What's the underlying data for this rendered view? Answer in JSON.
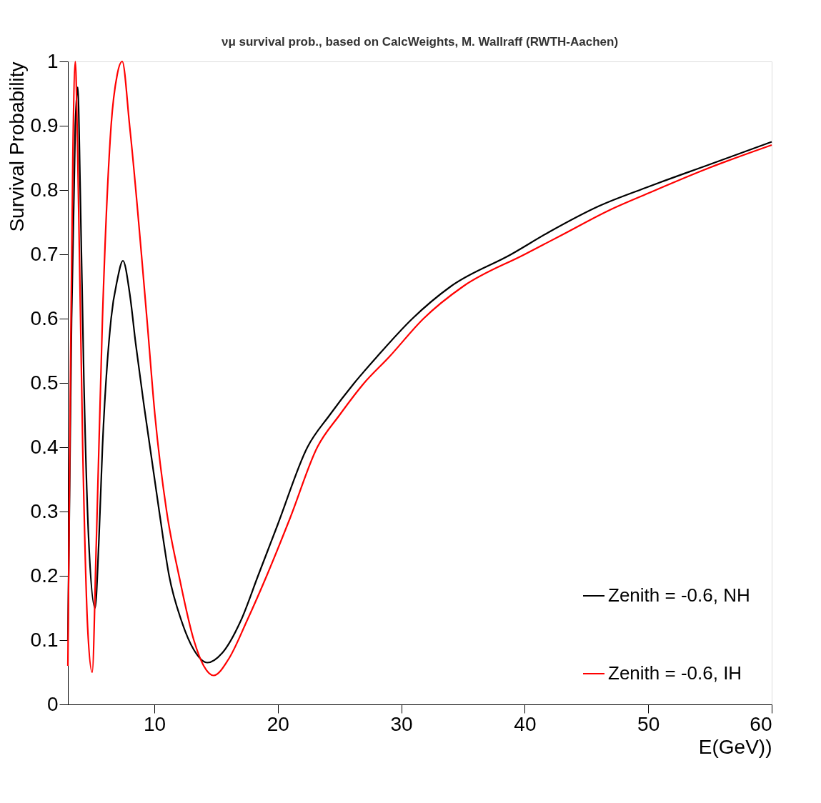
{
  "chart_data": {
    "type": "line",
    "title": "νμ survival prob., based on CalcWeights, M. Wallraff (RWTH-Aachen)",
    "xlabel": "E(GeV))",
    "ylabel": "Survival Probability",
    "xlim": [
      3,
      60
    ],
    "xticks": [
      10,
      20,
      30,
      40,
      50,
      60
    ],
    "ylim": [
      0,
      1
    ],
    "yticks": [
      0,
      0.1,
      0.2,
      0.3,
      0.4,
      0.5,
      0.6,
      0.7,
      0.8,
      0.9,
      1
    ],
    "grid": false,
    "legend": "bottom right",
    "marker": "none",
    "line_style": "solid",
    "series": [
      {
        "name": "Zenith = -0.6, NH",
        "color": "#000000",
        "x": [
          3.0,
          3.3,
          3.6,
          3.8,
          4.0,
          4.3,
          4.7,
          5.2,
          5.5,
          5.8,
          6.5,
          7.0,
          7.46,
          8.0,
          8.5,
          9.2,
          10.4,
          11.2,
          12.2,
          13.2,
          14.3,
          15.5,
          17.0,
          18.4,
          20.0,
          22.4,
          24.2,
          26.2,
          28.0,
          30.9,
          34.0,
          38.9,
          42.0,
          46.0,
          50.0,
          55.0,
          60.0
        ],
        "values": [
          0.1,
          0.6,
          0.9,
          0.96,
          0.8,
          0.5,
          0.25,
          0.15,
          0.25,
          0.4,
          0.6,
          0.66,
          0.69,
          0.64,
          0.56,
          0.46,
          0.3,
          0.2,
          0.13,
          0.085,
          0.065,
          0.08,
          0.13,
          0.2,
          0.28,
          0.4,
          0.45,
          0.5,
          0.54,
          0.6,
          0.65,
          0.7,
          0.735,
          0.775,
          0.805,
          0.84,
          0.875
        ]
      },
      {
        "name": "Zenith = -0.6, IH",
        "color": "#ff0000",
        "x": [
          3.0,
          3.2,
          3.4,
          3.6,
          3.8,
          4.2,
          4.6,
          4.97,
          5.3,
          5.8,
          6.5,
          7.0,
          7.4,
          8.0,
          9.4,
          10.05,
          11.0,
          12.0,
          13.2,
          14.0,
          14.8,
          16.0,
          17.5,
          19.1,
          21.0,
          23.2,
          25.0,
          27.0,
          29.0,
          31.8,
          35.0,
          40.0,
          43.0,
          47.0,
          50.0,
          55.0,
          60.0
        ],
        "values": [
          0.06,
          0.5,
          0.85,
          1.0,
          0.85,
          0.4,
          0.12,
          0.05,
          0.25,
          0.6,
          0.9,
          0.98,
          1.0,
          0.9,
          0.6,
          0.45,
          0.3,
          0.2,
          0.1,
          0.06,
          0.045,
          0.07,
          0.13,
          0.2,
          0.29,
          0.4,
          0.45,
          0.5,
          0.54,
          0.6,
          0.65,
          0.7,
          0.73,
          0.77,
          0.795,
          0.835,
          0.87
        ]
      }
    ]
  }
}
